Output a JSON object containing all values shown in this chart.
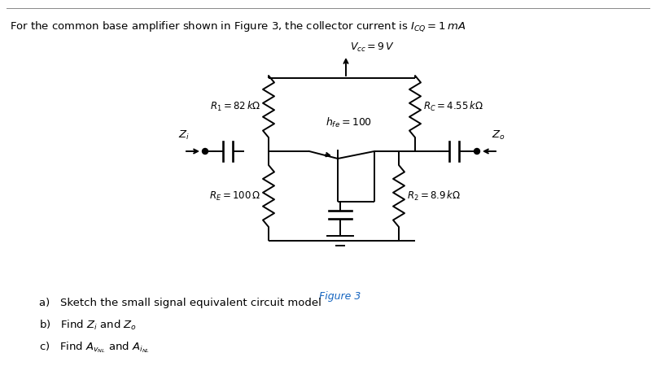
{
  "title": "For the common base amplifier shown in Figure 3, the collector current is $I_{CQ} = 1\\, mA$",
  "figure_label": "Figure 3",
  "vcc_label": "$V_{cc} = 9\\, V$",
  "r1_label": "$R_1 = 82\\, k\\Omega$",
  "rc_label": "$R_C = 4.55\\, k\\Omega$",
  "hfe_label": "$h_{fe} = 100$",
  "re_label": "$R_E = 100\\, \\Omega$",
  "r2_label": "$R_2 = 8.9\\, k\\Omega$",
  "zi_label": "$Z_i$",
  "zo_label": "$Z_o$",
  "question_a": "a)   Sketch the small signal equivalent circuit model",
  "question_b": "b)   Find $Z_i$ and $Z_o$",
  "question_c": "c)   Find $A_{v_{NL}}$ and $A_{i_{NL}}$",
  "bg_color": "#ffffff",
  "line_color": "#000000",
  "fig_label_color": "#1565c0",
  "text_color": "#000000",
  "lw": 1.4
}
